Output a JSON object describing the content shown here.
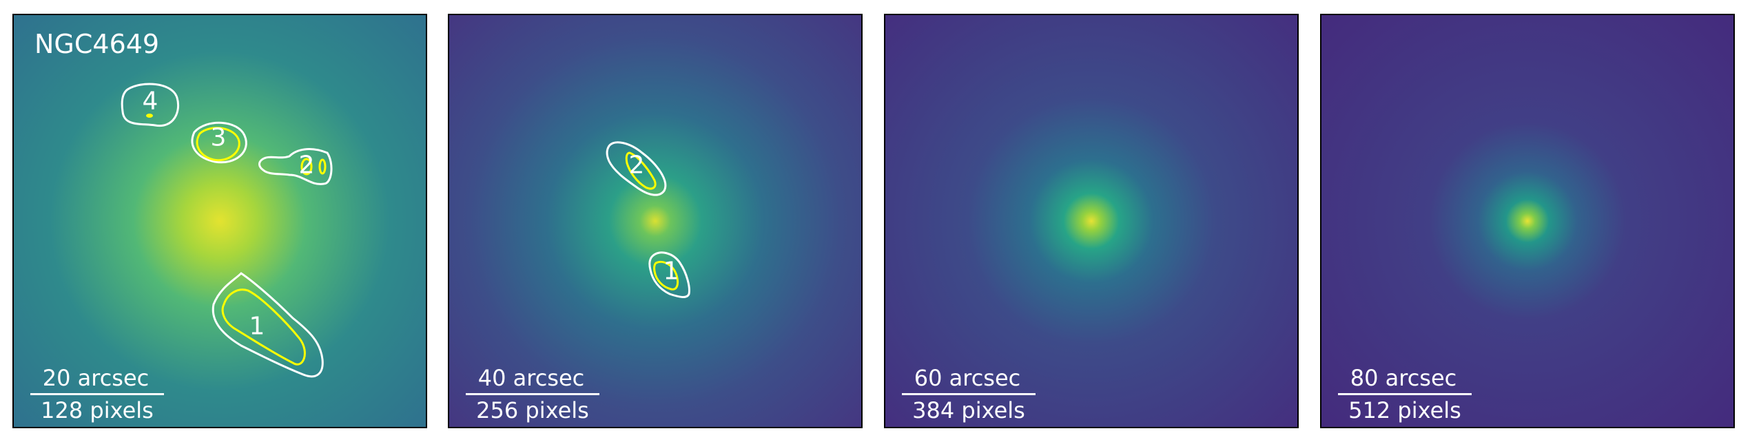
{
  "galaxy_name": "NGC4649",
  "colors": {
    "background": "#462a7c",
    "halo": "#2e7f8e",
    "core": "#e8e535",
    "contour_outer": "#ffffff",
    "contour_inner": "#ffff00"
  },
  "panels": [
    {
      "scale_arcsec": "20 arcsec",
      "scale_pixels": "128 pixels",
      "regions": [
        "1",
        "2",
        "3",
        "4"
      ]
    },
    {
      "scale_arcsec": "40 arcsec",
      "scale_pixels": "256 pixels",
      "regions": [
        "1",
        "2"
      ]
    },
    {
      "scale_arcsec": "60 arcsec",
      "scale_pixels": "384 pixels",
      "regions": []
    },
    {
      "scale_arcsec": "80 arcsec",
      "scale_pixels": "512 pixels",
      "regions": []
    }
  ]
}
